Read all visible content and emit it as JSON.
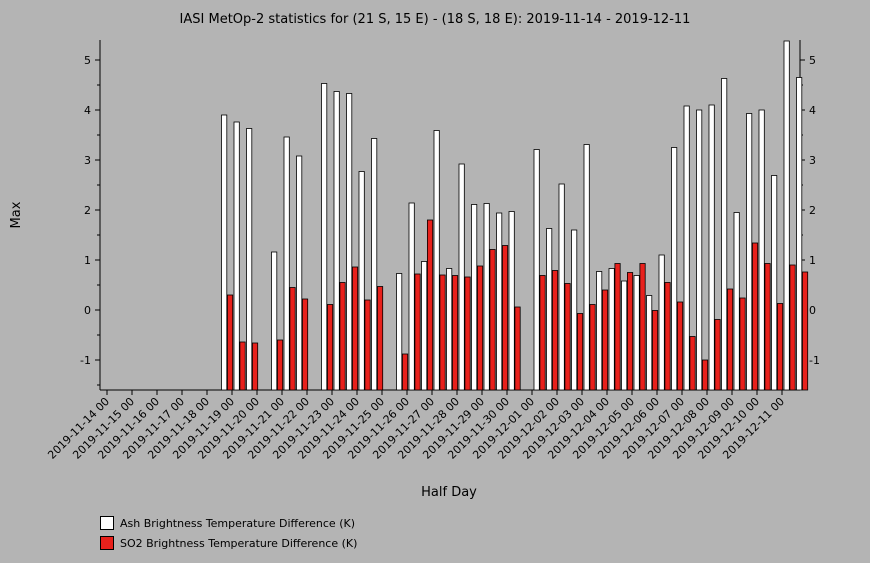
{
  "chart_data": {
    "type": "bar",
    "title": "IASI MetOp-2 statistics for (21 S, 15 E) - (18 S, 18 E): 2019-11-14 - 2019-12-11",
    "xlabel": "Half Day",
    "ylabel": "Max",
    "ylim": [
      -1.6,
      5.4
    ],
    "yticks": [
      -1,
      0,
      1,
      2,
      3,
      4,
      5
    ],
    "x_tick_labels": [
      "2019-11-14 00",
      "2019-11-15 00",
      "2019-11-16 00",
      "2019-11-17 00",
      "2019-11-18 00",
      "2019-11-19 00",
      "2019-11-20 00",
      "2019-11-21 00",
      "2019-11-22 00",
      "2019-11-23 00",
      "2019-11-24 00",
      "2019-11-25 00",
      "2019-11-26 00",
      "2019-11-27 00",
      "2019-11-28 00",
      "2019-11-29 00",
      "2019-11-30 00",
      "2019-12-01 00",
      "2019-12-02 00",
      "2019-12-03 00",
      "2019-12-04 00",
      "2019-12-05 00",
      "2019-12-06 00",
      "2019-12-07 00",
      "2019-12-08 00",
      "2019-12-09 00",
      "2019-12-10 00",
      "2019-12-11 00"
    ],
    "grid": false,
    "legend_position": "bottom-left",
    "colors": {
      "ash": "#ffffff",
      "so2": "#e8211c",
      "background": "#b4b4b4"
    },
    "series": [
      {
        "name": "Ash Brightness Temperature Difference (K)",
        "values": [
          null,
          null,
          null,
          null,
          null,
          null,
          null,
          null,
          null,
          3.9,
          3.76,
          3.63,
          null,
          1.16,
          3.46,
          3.08,
          null,
          4.53,
          4.37,
          4.33,
          2.77,
          3.43,
          null,
          0.73,
          2.14,
          0.97,
          3.59,
          0.83,
          2.92,
          2.11,
          2.13,
          1.94,
          1.97,
          null,
          3.21,
          1.63,
          2.52,
          1.6,
          3.31,
          0.77,
          0.83,
          0.58,
          0.69,
          0.29,
          1.1,
          3.25,
          4.08,
          4.0,
          4.1,
          4.63,
          1.95,
          3.93,
          4.0,
          2.69,
          5.38,
          4.65
        ]
      },
      {
        "name": "SO2 Brightness Temperature Difference (K)",
        "values": [
          null,
          null,
          null,
          null,
          null,
          null,
          null,
          null,
          null,
          0.3,
          -0.64,
          -0.66,
          null,
          -0.6,
          0.45,
          0.22,
          null,
          0.11,
          0.55,
          0.86,
          0.2,
          0.47,
          null,
          -0.88,
          0.72,
          1.8,
          0.7,
          0.69,
          0.66,
          0.88,
          1.21,
          1.29,
          0.06,
          null,
          0.69,
          0.79,
          0.53,
          -0.07,
          0.11,
          0.4,
          0.93,
          0.75,
          0.93,
          -0.01,
          0.55,
          0.16,
          -0.53,
          -1.0,
          -0.19,
          0.42,
          0.24,
          1.34,
          0.93,
          0.13,
          0.9,
          0.76
        ]
      }
    ]
  }
}
